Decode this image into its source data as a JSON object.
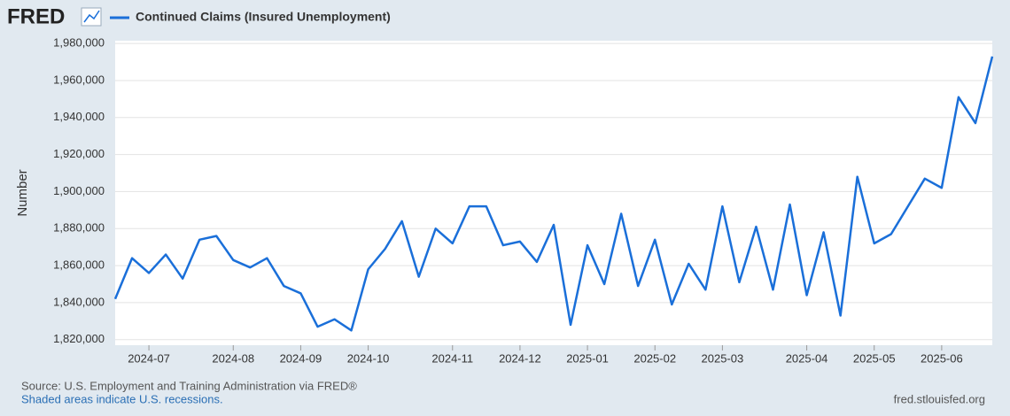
{
  "logo": "FRED",
  "chart_data": {
    "type": "line",
    "title": "Continued Claims (Insured Unemployment)",
    "ylabel": "Number",
    "source": "Source: U.S. Employment and Training Administration via FRED®",
    "note": "Shaded areas indicate U.S. recessions.",
    "site": "fred.stlouisfed.org",
    "categories": [
      null,
      null,
      "2024-07",
      null,
      null,
      null,
      null,
      "2024-08",
      null,
      null,
      null,
      "2024-09",
      null,
      null,
      null,
      "2024-10",
      null,
      null,
      null,
      null,
      "2024-11",
      null,
      null,
      null,
      "2024-12",
      null,
      null,
      null,
      "2025-01",
      null,
      null,
      null,
      "2025-02",
      null,
      null,
      null,
      "2025-03",
      null,
      null,
      null,
      null,
      "2025-04",
      null,
      null,
      null,
      "2025-05",
      null,
      null,
      null,
      "2025-06",
      null,
      null,
      null
    ],
    "series": [
      {
        "name": "Continued Claims (Insured Unemployment)",
        "color": "#1a6fd9",
        "values": [
          1842000,
          1864000,
          1856000,
          1866000,
          1853000,
          1874000,
          1876000,
          1863000,
          1859000,
          1864000,
          1849000,
          1845000,
          1827000,
          1831000,
          1825000,
          1858000,
          1869000,
          1884000,
          1854000,
          1880000,
          1872000,
          1892000,
          1892000,
          1871000,
          1873000,
          1862000,
          1882000,
          1828000,
          1871000,
          1850000,
          1888000,
          1849000,
          1874000,
          1839000,
          1861000,
          1847000,
          1892000,
          1851000,
          1881000,
          1847000,
          1893000,
          1844000,
          1878000,
          1833000,
          1908000,
          1872000,
          1877000,
          1892000,
          1907000,
          1902000,
          1951000,
          1937000,
          1973000
        ]
      }
    ],
    "ylim": [
      1817000,
      1981500
    ],
    "yticks": [
      {
        "value": 1820000,
        "label": "1,820,000"
      },
      {
        "value": 1840000,
        "label": "1,840,000"
      },
      {
        "value": 1860000,
        "label": "1,860,000"
      },
      {
        "value": 1880000,
        "label": "1,880,000"
      },
      {
        "value": 1900000,
        "label": "1,900,000"
      },
      {
        "value": 1920000,
        "label": "1,920,000"
      },
      {
        "value": 1940000,
        "label": "1,940,000"
      },
      {
        "value": 1960000,
        "label": "1,960,000"
      },
      {
        "value": 1980000,
        "label": "1,980,000"
      }
    ],
    "grid": true
  }
}
